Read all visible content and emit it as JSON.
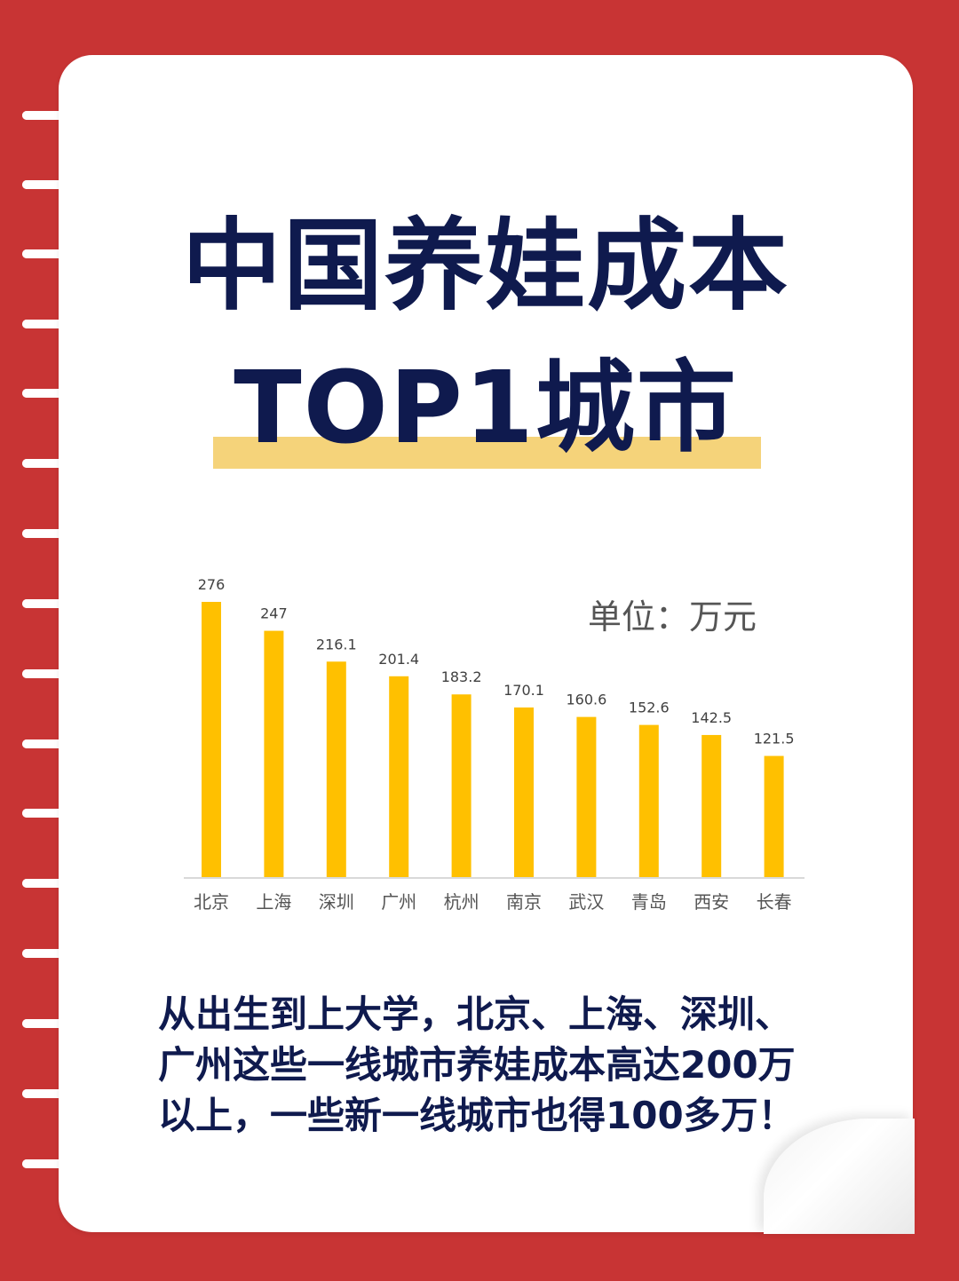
{
  "colors": {
    "background": "#c83434",
    "title": "#0f1a4e",
    "bar": "#ffc000",
    "highlight": "#f5d37a",
    "page": "#ffffff"
  },
  "title": {
    "line1": "中国养娃成本",
    "line2": "TOP1城市"
  },
  "unit_label": "单位：万元",
  "chart_data": {
    "type": "bar",
    "categories": [
      "北京",
      "上海",
      "深圳",
      "广州",
      "杭州",
      "南京",
      "武汉",
      "青岛",
      "西安",
      "长春"
    ],
    "values": [
      276,
      247,
      216.1,
      201.4,
      183.2,
      170.1,
      160.6,
      152.6,
      142.5,
      121.5
    ],
    "value_labels": [
      "276",
      "247",
      "216.1",
      "201.4",
      "183.2",
      "170.1",
      "160.6",
      "152.6",
      "142.5",
      "121.5"
    ],
    "ylim": [
      0,
      276
    ],
    "grid": false,
    "unit": "万元"
  },
  "caption": [
    "从出生到上大学，北京、上海、深圳、",
    "广州这些一线城市养娃成本高达200万",
    "以上，一些新一线城市也得100多万！"
  ]
}
